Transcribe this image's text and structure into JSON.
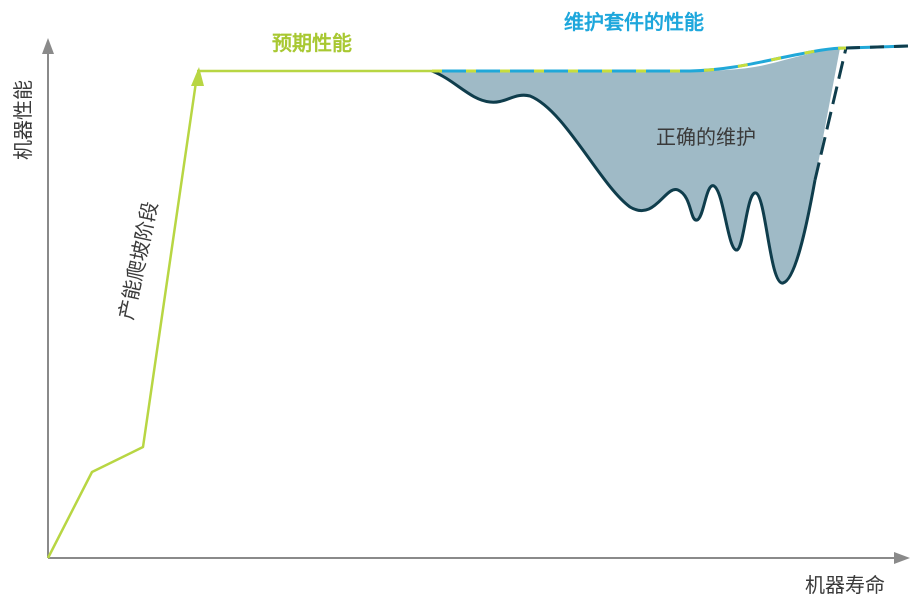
{
  "axes": {
    "y_label": "机器性能",
    "x_label": "机器寿命"
  },
  "labels": {
    "expected_performance": "预期性能",
    "maintenance_kit_performance": "维护套件的性能",
    "capacity_ramp_up": "产能爬坡阶段",
    "correct_maintenance": "正确的维护"
  },
  "colors": {
    "axis": "#8a8a8a",
    "expected_line": "#b8d643",
    "kit_line": "#21a8d8",
    "degradation_line": "#0f3d4c",
    "shaded_area": "#9fbac6",
    "label_green": "#a8c832",
    "label_blue": "#1ea7dc",
    "text_dark": "#3a3a3a"
  }
}
